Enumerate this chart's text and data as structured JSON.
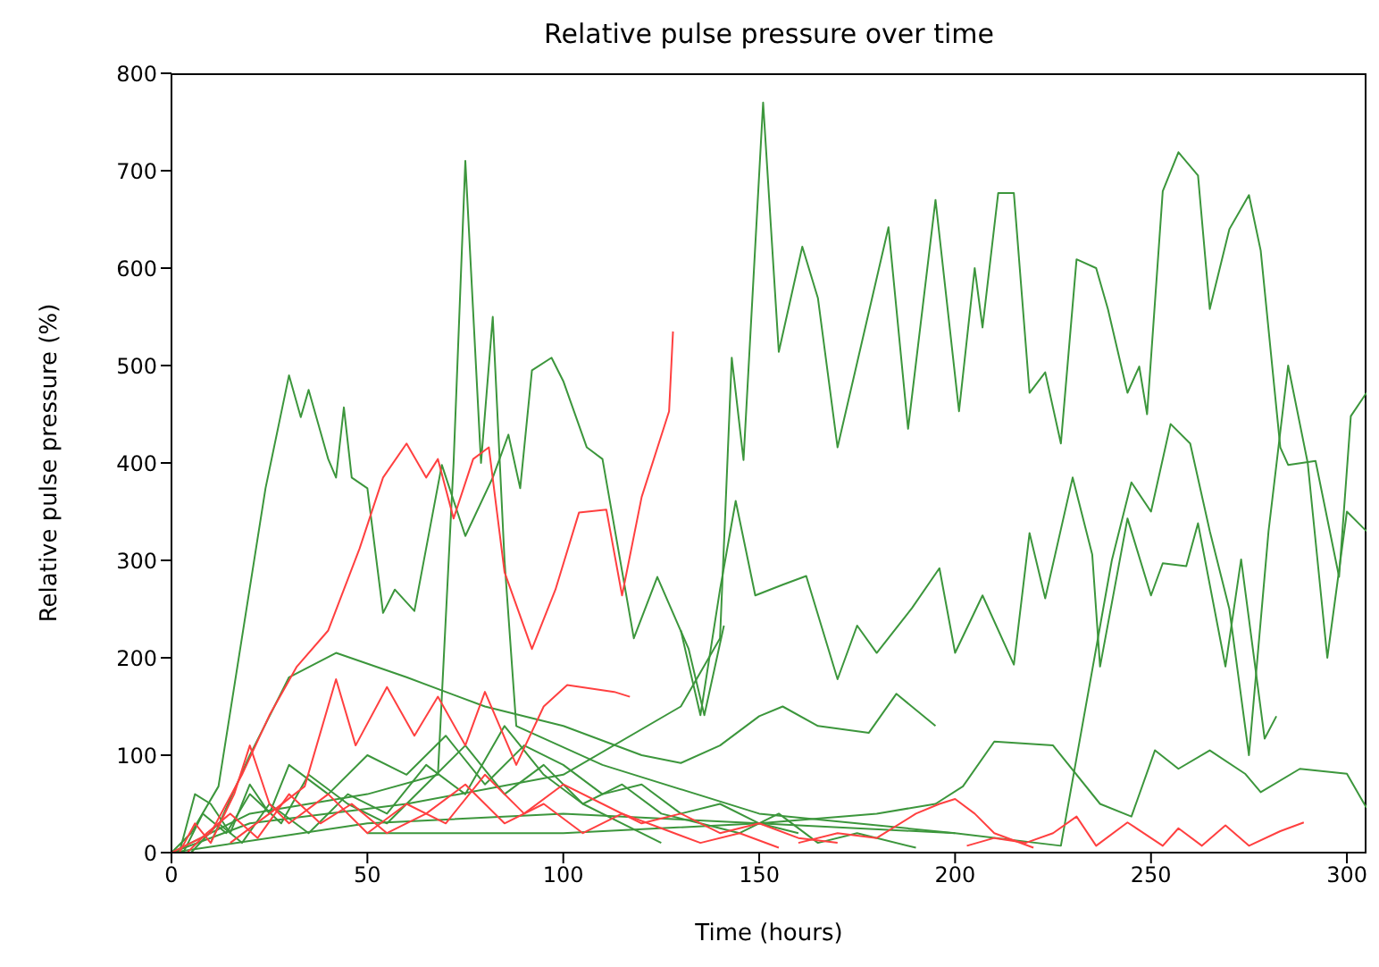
{
  "chart_data": {
    "type": "line",
    "title": "Relative pulse pressure over time",
    "xlabel": "Time (hours)",
    "ylabel": "Relative pulse pressure (%)",
    "xlim": [
      0,
      305
    ],
    "ylim": [
      0,
      800
    ],
    "xticks": [
      0,
      50,
      100,
      150,
      200,
      250,
      300
    ],
    "yticks": [
      0,
      100,
      200,
      300,
      400,
      500,
      600,
      700,
      800
    ],
    "series": [
      {
        "color": "#3c963c",
        "x": [
          0,
          20,
          60,
          100,
          130,
          140,
          143,
          146,
          151,
          155,
          161,
          165,
          170,
          175,
          183,
          188,
          195,
          201,
          205,
          207,
          211,
          215,
          219,
          223,
          227,
          231,
          236,
          239,
          244,
          247,
          249,
          253,
          257,
          262,
          265,
          270,
          275,
          278,
          283,
          285,
          292,
          298,
          301,
          305
        ],
        "values": [
          0,
          30,
          50,
          80,
          150,
          220,
          508,
          403,
          770,
          514,
          622,
          569,
          416,
          503,
          642,
          435,
          670,
          453,
          600,
          539,
          677,
          677,
          472,
          493,
          420,
          609,
          600,
          558,
          472,
          499,
          450,
          679,
          719,
          695,
          558,
          640,
          675,
          618,
          416,
          398,
          402,
          283,
          448,
          472
        ]
      },
      {
        "color": "#3c963c",
        "x": [
          0,
          20,
          50,
          68,
          72,
          75,
          79,
          82,
          85,
          88,
          110,
          150,
          200
        ],
        "values": [
          0,
          40,
          60,
          80,
          400,
          710,
          400,
          550,
          300,
          130,
          90,
          40,
          20
        ]
      },
      {
        "color": "#3c963c",
        "x": [
          0,
          5,
          12,
          24,
          30,
          33,
          35,
          40,
          42,
          44,
          46,
          50,
          54,
          57,
          62,
          69,
          75,
          82,
          86,
          89,
          92,
          97,
          100,
          106,
          110,
          118,
          124,
          132,
          136,
          141
        ],
        "values": [
          0,
          20,
          68,
          374,
          490,
          447,
          475,
          404,
          385,
          457,
          385,
          374,
          246,
          270,
          248,
          398,
          325,
          385,
          429,
          374,
          495,
          508,
          484,
          416,
          404,
          220,
          283,
          209,
          141,
          233
        ]
      },
      {
        "color": "#3c963c",
        "x": [
          130,
          135,
          140,
          144,
          149,
          156,
          162,
          170,
          175,
          180,
          189,
          196,
          200,
          207,
          215,
          219,
          223,
          230,
          235,
          237,
          244,
          250,
          253,
          259,
          262,
          269,
          273,
          279,
          282
        ],
        "values": [
          228,
          141,
          270,
          361,
          264,
          275,
          284,
          178,
          233,
          205,
          251,
          292,
          205,
          264,
          193,
          328,
          261,
          385,
          306,
          191,
          343,
          264,
          297,
          294,
          338,
          191,
          301,
          117,
          140
        ]
      },
      {
        "color": "#3c963c",
        "x": [
          0,
          50,
          100,
          150,
          200,
          227,
          240,
          245,
          250,
          255,
          260,
          265,
          270,
          275,
          280,
          285,
          290,
          295,
          300,
          305
        ],
        "values": [
          0,
          30,
          40,
          30,
          20,
          7,
          300,
          380,
          350,
          440,
          420,
          330,
          250,
          100,
          330,
          500,
          400,
          200,
          350,
          330
        ]
      },
      {
        "color": "#3c963c",
        "x": [
          10,
          20,
          30,
          42,
          60,
          80,
          100,
          120,
          130,
          140,
          150,
          156,
          165,
          178,
          185,
          195
        ],
        "values": [
          10,
          100,
          180,
          205,
          180,
          150,
          130,
          100,
          92,
          110,
          140,
          150,
          130,
          123,
          163,
          130
        ]
      },
      {
        "color": "#3c963c",
        "x": [
          50,
          100,
          150,
          180,
          195,
          202,
          210,
          225,
          237,
          245,
          251,
          257,
          265,
          274,
          278,
          288,
          300,
          305
        ],
        "values": [
          20,
          20,
          30,
          40,
          50,
          68,
          114,
          110,
          50,
          37,
          105,
          86,
          105,
          81,
          62,
          86,
          81,
          46
        ]
      },
      {
        "color": "#3c963c",
        "x": [
          2,
          6,
          10,
          15,
          20,
          25,
          30,
          40,
          50,
          60,
          70,
          80,
          90,
          100,
          110,
          120,
          130,
          140,
          150,
          160
        ],
        "values": [
          0,
          60,
          50,
          20,
          70,
          40,
          90,
          60,
          100,
          80,
          120,
          70,
          110,
          90,
          60,
          70,
          40,
          50,
          30,
          20
        ]
      },
      {
        "color": "#3c963c",
        "x": [
          3,
          8,
          14,
          20,
          28,
          35,
          45,
          55,
          65,
          75,
          85,
          95,
          105,
          115,
          125,
          135,
          145,
          155,
          165,
          175,
          190
        ],
        "values": [
          0,
          40,
          20,
          60,
          30,
          80,
          50,
          30,
          70,
          110,
          60,
          90,
          50,
          70,
          40,
          30,
          20,
          40,
          10,
          20,
          5
        ]
      },
      {
        "color": "#3c963c",
        "x": [
          5,
          12,
          18,
          25,
          35,
          45,
          55,
          65,
          75,
          85,
          95,
          105,
          115,
          125
        ],
        "values": [
          0,
          30,
          10,
          50,
          20,
          60,
          40,
          90,
          60,
          130,
          80,
          50,
          30,
          10
        ]
      },
      {
        "color": "#ff4040",
        "x": [
          0,
          10,
          18,
          25,
          32,
          40,
          48,
          54,
          60,
          65,
          68,
          72,
          77,
          81,
          85,
          92,
          98,
          104,
          111,
          115,
          120,
          127,
          128
        ],
        "values": [
          0,
          20,
          80,
          141,
          191,
          228,
          312,
          385,
          420,
          385,
          404,
          343,
          404,
          416,
          288,
          209,
          270,
          349,
          352,
          264,
          365,
          453,
          535
        ]
      },
      {
        "color": "#ff4040",
        "x": [
          15,
          25,
          34,
          42,
          47,
          55,
          62,
          68,
          75,
          80,
          88,
          95,
          101,
          113,
          117
        ],
        "values": [
          10,
          40,
          68,
          178,
          110,
          170,
          120,
          160,
          110,
          165,
          90,
          150,
          172,
          165,
          160
        ]
      },
      {
        "color": "#ff4040",
        "x": [
          203,
          210,
          218,
          225,
          231,
          236,
          244,
          253,
          257,
          263,
          269,
          275,
          283,
          289
        ],
        "values": [
          7,
          15,
          10,
          20,
          37,
          7,
          31,
          7,
          25,
          7,
          28,
          7,
          22,
          31
        ]
      },
      {
        "color": "#ff4040",
        "x": [
          160,
          170,
          180,
          190,
          196,
          200,
          205,
          210,
          220
        ],
        "values": [
          10,
          20,
          15,
          40,
          50,
          55,
          40,
          20,
          5
        ]
      },
      {
        "color": "#ff4040",
        "x": [
          2,
          6,
          10,
          16,
          20,
          25,
          30,
          40,
          50,
          60,
          70,
          80,
          90,
          100,
          110,
          120,
          130,
          140,
          150,
          160,
          170
        ],
        "values": [
          0,
          30,
          10,
          60,
          110,
          50,
          30,
          60,
          20,
          50,
          30,
          80,
          40,
          70,
          50,
          30,
          40,
          20,
          30,
          15,
          10
        ]
      },
      {
        "color": "#ff4040",
        "x": [
          4,
          9,
          15,
          22,
          30,
          38,
          46,
          55,
          65,
          75,
          85,
          95,
          105,
          115,
          125,
          135,
          145,
          155
        ],
        "values": [
          0,
          20,
          40,
          15,
          60,
          30,
          50,
          20,
          40,
          70,
          30,
          50,
          20,
          40,
          25,
          10,
          20,
          5
        ]
      }
    ]
  }
}
